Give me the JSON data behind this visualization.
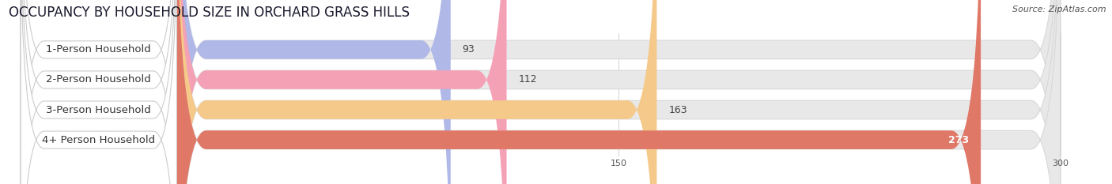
{
  "title": "OCCUPANCY BY HOUSEHOLD SIZE IN ORCHARD GRASS HILLS",
  "source": "Source: ZipAtlas.com",
  "categories": [
    "1-Person Household",
    "2-Person Household",
    "3-Person Household",
    "4+ Person Household"
  ],
  "values": [
    93,
    112,
    163,
    273
  ],
  "bar_colors": [
    "#b0b8e8",
    "#f4a0b5",
    "#f5c98a",
    "#e07868"
  ],
  "label_box_colors": [
    "#ffffff",
    "#ffffff",
    "#ffffff",
    "#ffffff"
  ],
  "label_pill_border_colors": [
    "#c0c4e0",
    "#e8a0b0",
    "#e8c080",
    "#e07060"
  ],
  "xlim": [
    -60,
    310
  ],
  "data_xlim": [
    0,
    300
  ],
  "xticks": [
    0,
    150,
    300
  ],
  "value_label_colors": [
    "#555555",
    "#555555",
    "#555555",
    "#ffffff"
  ],
  "background_color": "#ffffff",
  "bar_bg_color": "#e8e8e8",
  "bar_bg_border": "#d8d8d8",
  "title_fontsize": 12,
  "source_fontsize": 8,
  "label_fontsize": 9.5,
  "value_fontsize": 9
}
